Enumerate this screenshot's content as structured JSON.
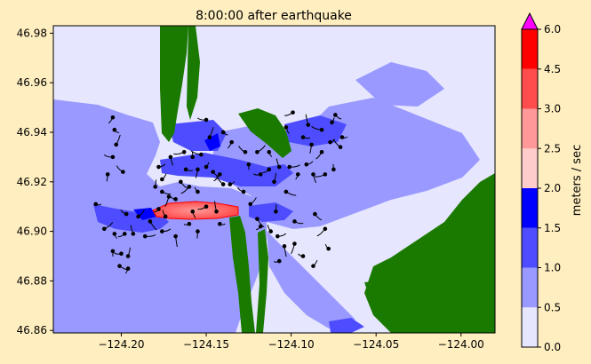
{
  "chart_data": {
    "type": "heatmap",
    "title": "8:00:00 after earthquake",
    "xlabel": "",
    "ylabel": "",
    "xlim": [
      -124.24,
      -123.98
    ],
    "ylim": [
      46.859,
      46.983
    ],
    "x_ticks": [
      -124.2,
      -124.15,
      -124.1,
      -124.05,
      -124.0
    ],
    "x_tick_labels": [
      "−124.20",
      "−124.15",
      "−124.10",
      "−124.05",
      "−124.00"
    ],
    "y_ticks": [
      46.86,
      46.88,
      46.9,
      46.92,
      46.94,
      46.96,
      46.98
    ],
    "y_tick_labels": [
      "46.86",
      "46.88",
      "46.90",
      "46.92",
      "46.94",
      "46.96",
      "46.98"
    ],
    "grid": false,
    "colorbar": {
      "label": "meters / sec",
      "levels": [
        0.0,
        0.5,
        1.0,
        1.5,
        2.0,
        2.5,
        3.0,
        4.5,
        6.0
      ],
      "tick_labels": [
        "0.0",
        "0.5",
        "1.0",
        "1.5",
        "2.0",
        "2.5",
        "3.0",
        "4.5",
        "6.0"
      ],
      "colors": [
        "#e6e6ff",
        "#9999ff",
        "#4d4dff",
        "#0000ff",
        "#ffcccc",
        "#ff9999",
        "#ff4d4d",
        "#ff0000"
      ],
      "extend_max_color": "#ff00ff"
    },
    "land_color": "#1a7a00",
    "particles": [
      [
        -124.215,
        46.911
      ],
      [
        -124.208,
        46.923
      ],
      [
        -124.205,
        46.93
      ],
      [
        -124.203,
        46.935
      ],
      [
        -124.204,
        46.941
      ],
      [
        -124.205,
        46.946
      ],
      [
        -124.199,
        46.924
      ],
      [
        -124.21,
        46.901
      ],
      [
        -124.204,
        46.899
      ],
      [
        -124.198,
        46.899
      ],
      [
        -124.193,
        46.899
      ],
      [
        -124.186,
        46.898
      ],
      [
        -124.205,
        46.892
      ],
      [
        -124.2,
        46.891
      ],
      [
        -124.196,
        46.89
      ],
      [
        -124.201,
        46.886
      ],
      [
        -124.196,
        46.885
      ],
      [
        -124.197,
        46.907
      ],
      [
        -124.19,
        46.906
      ],
      [
        -124.183,
        46.904
      ],
      [
        -124.178,
        46.909
      ],
      [
        -124.174,
        46.906
      ],
      [
        -124.176,
        46.9
      ],
      [
        -124.168,
        46.898
      ],
      [
        -124.16,
        46.903
      ],
      [
        -124.18,
        46.918
      ],
      [
        -124.176,
        46.916
      ],
      [
        -124.172,
        46.914
      ],
      [
        -124.168,
        46.913
      ],
      [
        -124.176,
        46.921
      ],
      [
        -124.165,
        46.92
      ],
      [
        -124.16,
        46.918
      ],
      [
        -124.155,
        46.916
      ],
      [
        -124.178,
        46.926
      ],
      [
        -124.171,
        46.93
      ],
      [
        -124.163,
        46.932
      ],
      [
        -124.158,
        46.93
      ],
      [
        -124.162,
        46.925
      ],
      [
        -124.155,
        46.925
      ],
      [
        -124.153,
        46.931
      ],
      [
        -124.15,
        46.926
      ],
      [
        -124.146,
        46.924
      ],
      [
        -124.142,
        46.923
      ],
      [
        -124.14,
        46.919
      ],
      [
        -124.136,
        46.919
      ],
      [
        -124.158,
        46.908
      ],
      [
        -124.15,
        46.91
      ],
      [
        -124.144,
        46.908
      ],
      [
        -124.142,
        46.903
      ],
      [
        -124.155,
        46.9
      ],
      [
        -124.15,
        46.945
      ],
      [
        -124.148,
        46.938
      ],
      [
        -124.14,
        46.94
      ],
      [
        -124.135,
        46.936
      ],
      [
        -124.127,
        46.932
      ],
      [
        -124.12,
        46.932
      ],
      [
        -124.113,
        46.932
      ],
      [
        -124.113,
        46.925
      ],
      [
        -124.107,
        46.926
      ],
      [
        -124.101,
        46.926
      ],
      [
        -124.125,
        46.927
      ],
      [
        -124.118,
        46.923
      ],
      [
        -124.11,
        46.92
      ],
      [
        -124.103,
        46.916
      ],
      [
        -124.096,
        46.923
      ],
      [
        -124.128,
        46.916
      ],
      [
        -124.124,
        46.911
      ],
      [
        -124.12,
        46.905
      ],
      [
        -124.118,
        46.902
      ],
      [
        -124.112,
        46.9
      ],
      [
        -124.108,
        46.898
      ],
      [
        -124.104,
        46.894
      ],
      [
        -124.107,
        46.888
      ],
      [
        -124.109,
        46.908
      ],
      [
        -124.098,
        46.904
      ],
      [
        -124.098,
        46.895
      ],
      [
        -124.093,
        46.89
      ],
      [
        -124.087,
        46.886
      ],
      [
        -124.086,
        46.907
      ],
      [
        -124.08,
        46.901
      ],
      [
        -124.078,
        46.893
      ],
      [
        -124.091,
        46.927
      ],
      [
        -124.087,
        46.923
      ],
      [
        -124.08,
        46.923
      ],
      [
        -124.075,
        46.925
      ],
      [
        -124.093,
        46.938
      ],
      [
        -124.088,
        46.935
      ],
      [
        -124.082,
        46.941
      ],
      [
        -124.076,
        46.944
      ],
      [
        -124.074,
        46.947
      ],
      [
        -124.082,
        46.932
      ],
      [
        -124.071,
        46.934
      ],
      [
        -124.077,
        46.936
      ],
      [
        -124.103,
        46.942
      ],
      [
        -124.099,
        46.948
      ],
      [
        -124.09,
        46.943
      ],
      [
        -124.07,
        46.938
      ]
    ]
  }
}
